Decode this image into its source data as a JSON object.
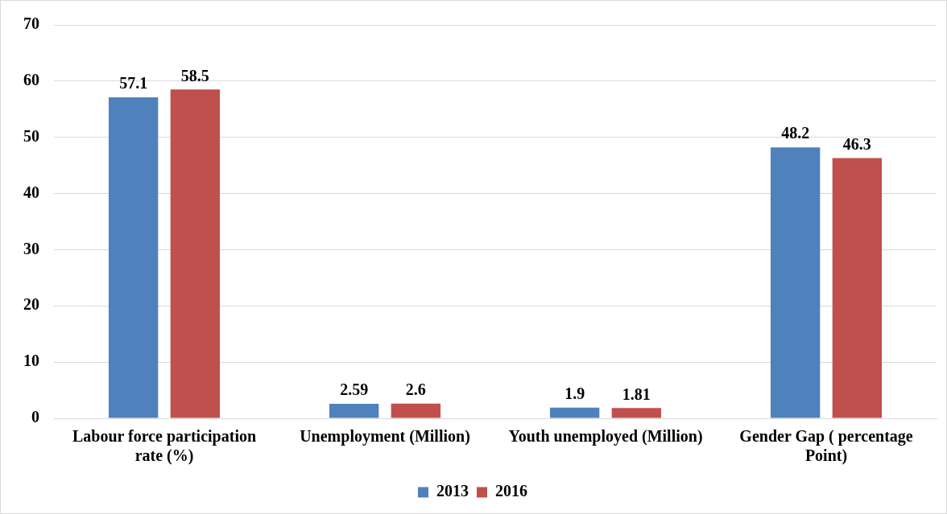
{
  "chart_data": {
    "type": "bar",
    "categories": [
      "Labour force participation rate (%)",
      "Unemployment (Million)",
      "Youth unemployed (Million)",
      "Gender Gap ( percentage Point)"
    ],
    "series": [
      {
        "name": "2013",
        "color": "#4f81bd",
        "values": [
          57.1,
          2.59,
          1.9,
          48.2
        ]
      },
      {
        "name": "2016",
        "color": "#c0504d",
        "values": [
          58.5,
          2.6,
          1.81,
          46.3
        ]
      }
    ],
    "ylim": [
      0,
      70
    ],
    "yticks": [
      0,
      10,
      20,
      30,
      40,
      50,
      60,
      70
    ],
    "grid": "y",
    "legend": "bottom",
    "data_labels": true
  }
}
